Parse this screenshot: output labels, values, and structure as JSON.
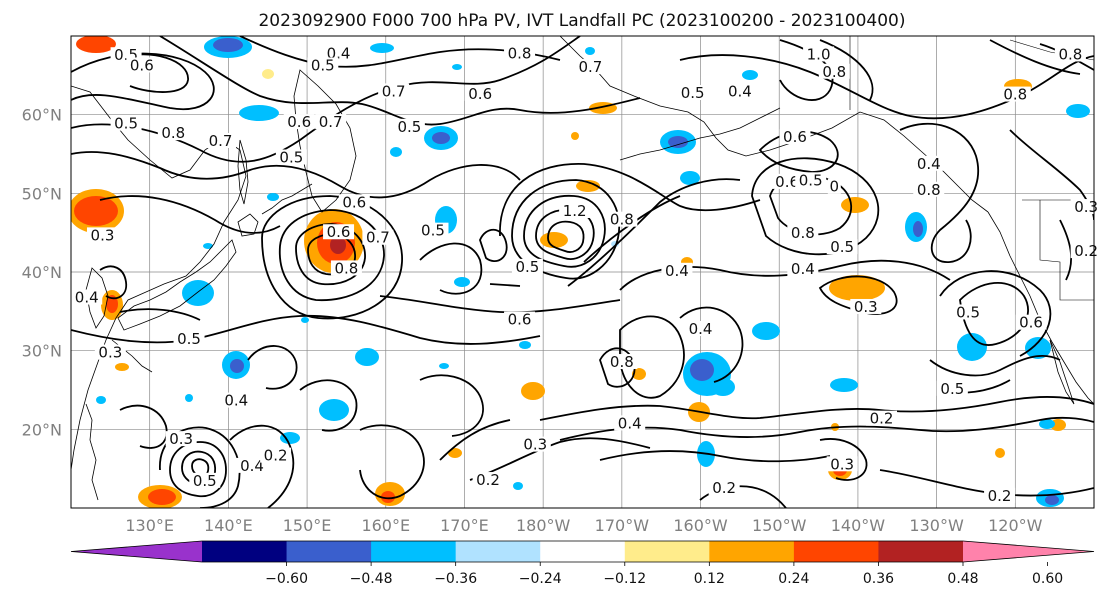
{
  "title": "2023092900 F000 700 hPa PV, IVT Landfall PC (2023100200 - 2023100400)",
  "map": {
    "lat_ticks": [
      "60°N",
      "50°N",
      "40°N",
      "30°N",
      "20°N"
    ],
    "lon_ticks": [
      "130°E",
      "140°E",
      "150°E",
      "160°E",
      "170°E",
      "180°W",
      "170°W",
      "160°W",
      "150°W",
      "140°W",
      "130°W",
      "120°W"
    ],
    "lat_values": [
      60,
      50,
      40,
      30,
      20
    ],
    "lon_values": [
      130,
      140,
      150,
      160,
      170,
      180,
      190,
      200,
      210,
      220,
      230,
      240
    ],
    "extent": {
      "lon_min": 120,
      "lon_max": 250,
      "lat_min": 10,
      "lat_max": 70
    },
    "grid": true
  },
  "contour_labels": [
    {
      "text": "0.5",
      "lon": 127,
      "lat": 67.3
    },
    {
      "text": "0.6",
      "lon": 129,
      "lat": 66
    },
    {
      "text": "0.4",
      "lon": 154,
      "lat": 67.5
    },
    {
      "text": "0.5",
      "lon": 152,
      "lat": 66
    },
    {
      "text": "0.8",
      "lon": 177,
      "lat": 67.5
    },
    {
      "text": "0.7",
      "lon": 186,
      "lat": 65.8
    },
    {
      "text": "0.6",
      "lon": 172,
      "lat": 62.4
    },
    {
      "text": "0.7",
      "lon": 161,
      "lat": 62.7
    },
    {
      "text": "0.5",
      "lon": 127,
      "lat": 58.6
    },
    {
      "text": "0.8",
      "lon": 133,
      "lat": 57.4
    },
    {
      "text": "0.7",
      "lon": 139,
      "lat": 56.4
    },
    {
      "text": "0.6",
      "lon": 149,
      "lat": 58.8
    },
    {
      "text": "0.7",
      "lon": 153,
      "lat": 58.8
    },
    {
      "text": "0.5",
      "lon": 163,
      "lat": 58.2
    },
    {
      "text": "0.5",
      "lon": 148,
      "lat": 54.3
    },
    {
      "text": "0.4",
      "lon": 205,
      "lat": 62.7
    },
    {
      "text": "0.5",
      "lon": 199,
      "lat": 62.5
    },
    {
      "text": "1.0",
      "lon": 215,
      "lat": 67.4
    },
    {
      "text": "0.8",
      "lon": 217,
      "lat": 65.2
    },
    {
      "text": "0.8",
      "lon": 247,
      "lat": 67.4
    },
    {
      "text": "0.8",
      "lon": 240,
      "lat": 62.3
    },
    {
      "text": "0.6",
      "lon": 212,
      "lat": 56.9
    },
    {
      "text": "0.4",
      "lon": 229,
      "lat": 53.5
    },
    {
      "text": "0.8",
      "lon": 229,
      "lat": 50.2
    },
    {
      "text": "0.6",
      "lon": 211,
      "lat": 51.2
    },
    {
      "text": "0.5",
      "lon": 214,
      "lat": 51.4
    },
    {
      "text": "0",
      "lon": 217,
      "lat": 50.6
    },
    {
      "text": "0.8",
      "lon": 213,
      "lat": 44.7
    },
    {
      "text": "0.5",
      "lon": 218,
      "lat": 42.9
    },
    {
      "text": "0.4",
      "lon": 213,
      "lat": 40.1
    },
    {
      "text": "0.3",
      "lon": 221,
      "lat": 35.3
    },
    {
      "text": "0.6",
      "lon": 154,
      "lat": 44.8
    },
    {
      "text": "0.6",
      "lon": 156,
      "lat": 48.6
    },
    {
      "text": "0.7",
      "lon": 159,
      "lat": 44.1
    },
    {
      "text": "0.5",
      "lon": 166,
      "lat": 45
    },
    {
      "text": "0.8",
      "lon": 155,
      "lat": 40.2
    },
    {
      "text": "1.2",
      "lon": 184,
      "lat": 47.5
    },
    {
      "text": "0.8",
      "lon": 190,
      "lat": 46.4
    },
    {
      "text": "0.5",
      "lon": 178,
      "lat": 40.4
    },
    {
      "text": "0.6",
      "lon": 177,
      "lat": 33.7
    },
    {
      "text": "0.4",
      "lon": 197,
      "lat": 39.9
    },
    {
      "text": "0.4",
      "lon": 200,
      "lat": 32.5
    },
    {
      "text": "0.8",
      "lon": 190,
      "lat": 28.3
    },
    {
      "text": "0.4",
      "lon": 191,
      "lat": 20.5
    },
    {
      "text": "0.3",
      "lon": 179,
      "lat": 17.8
    },
    {
      "text": "0.2",
      "lon": 173,
      "lat": 13.3
    },
    {
      "text": "0.2",
      "lon": 203,
      "lat": 12.3
    },
    {
      "text": "0.2",
      "lon": 223,
      "lat": 21.1
    },
    {
      "text": "0.3",
      "lon": 218,
      "lat": 15.3
    },
    {
      "text": "0.2",
      "lon": 238,
      "lat": 11.3
    },
    {
      "text": "0.5",
      "lon": 234,
      "lat": 34.6
    },
    {
      "text": "0.6",
      "lon": 242,
      "lat": 33.3
    },
    {
      "text": "0.5",
      "lon": 232,
      "lat": 24.9
    },
    {
      "text": "0.3",
      "lon": 249,
      "lat": 48
    },
    {
      "text": "0.2",
      "lon": 249,
      "lat": 42.4
    },
    {
      "text": "0.4",
      "lon": 122,
      "lat": 36.5
    },
    {
      "text": "0.3",
      "lon": 124,
      "lat": 44.4
    },
    {
      "text": "0.3",
      "lon": 125,
      "lat": 29.5
    },
    {
      "text": "0.5",
      "lon": 135,
      "lat": 31.2
    },
    {
      "text": "0.4",
      "lon": 141,
      "lat": 23.4
    },
    {
      "text": "0.3",
      "lon": 134,
      "lat": 18.5
    },
    {
      "text": "0.5",
      "lon": 137,
      "lat": 13.2
    },
    {
      "text": "0.4",
      "lon": 143,
      "lat": 15.1
    },
    {
      "text": "0.2",
      "lon": 146,
      "lat": 16.4
    }
  ],
  "colorbar": {
    "tick_labels": [
      "−0.60",
      "−0.48",
      "−0.36",
      "−0.24",
      "−0.12",
      "0.12",
      "0.24",
      "0.36",
      "0.48",
      "0.60"
    ],
    "levels": [
      -0.6,
      -0.48,
      -0.36,
      -0.24,
      -0.12,
      0.12,
      0.24,
      0.36,
      0.48,
      0.6
    ],
    "colors": [
      "#9932cc",
      "#000080",
      "#3a5fcd",
      "#00bfff",
      "#b0e2ff",
      "#ffffff",
      "#ffec8b",
      "#ffa500",
      "#ff4500",
      "#b22222",
      "#ff82ab"
    ]
  }
}
